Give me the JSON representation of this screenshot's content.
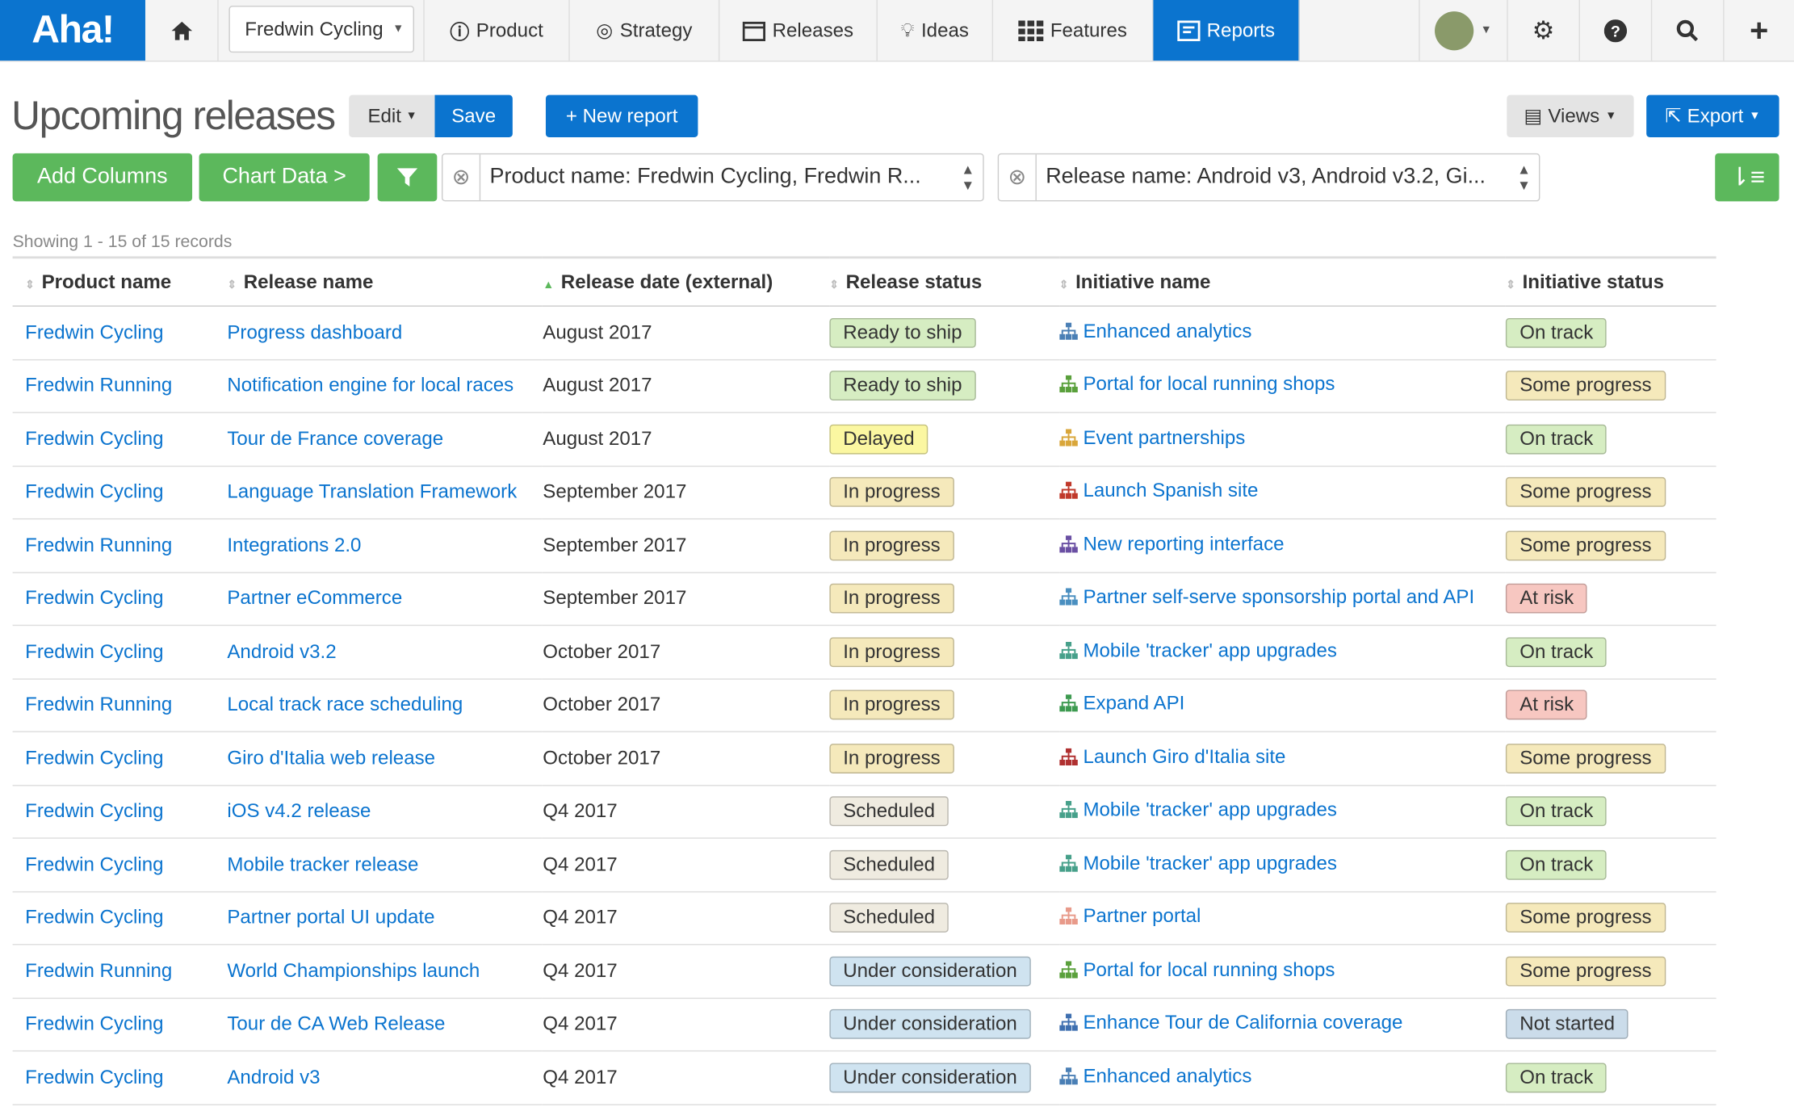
{
  "nav": {
    "logo": "Aha!",
    "workspace": "Fredwin Cycling",
    "items": [
      "Product",
      "Strategy",
      "Releases",
      "Ideas",
      "Features",
      "Reports"
    ]
  },
  "header": {
    "title": "Upcoming releases",
    "edit": "Edit",
    "save": "Save",
    "new_report": "+ New report",
    "views": "Views",
    "export": "Export"
  },
  "toolbar": {
    "add_columns": "Add Columns",
    "chart_data": "Chart Data >",
    "filters": [
      "Product name: Fredwin Cycling, Fredwin R...",
      "Release name: Android v3, Android v3.2, Gi..."
    ]
  },
  "showing": "Showing 1 - 15 of 15 records",
  "table": {
    "columns": [
      "Product name",
      "Release name",
      "Release date (external)",
      "Release status",
      "Initiative name",
      "Initiative status"
    ],
    "rows": [
      {
        "product": "Fredwin Cycling",
        "release": "Progress dashboard",
        "date": "August 2017",
        "status": {
          "label": "Ready to ship",
          "color": "#d6edc2"
        },
        "initiative": {
          "label": "Enhanced analytics",
          "color": "#4a7fb5"
        },
        "initiative_status": {
          "label": "On track",
          "color": "#d6edc2"
        }
      },
      {
        "product": "Fredwin Running",
        "release": "Notification engine for local races",
        "date": "August 2017",
        "status": {
          "label": "Ready to ship",
          "color": "#d6edc2"
        },
        "initiative": {
          "label": "Portal for local running shops",
          "color": "#5aa03c"
        },
        "initiative_status": {
          "label": "Some progress",
          "color": "#f5e9bb"
        }
      },
      {
        "product": "Fredwin Cycling",
        "release": "Tour de France coverage",
        "date": "August 2017",
        "status": {
          "label": "Delayed",
          "color": "#fbf7a1"
        },
        "initiative": {
          "label": "Event partnerships",
          "color": "#d9a63a"
        },
        "initiative_status": {
          "label": "On track",
          "color": "#d6edc2"
        }
      },
      {
        "product": "Fredwin Cycling",
        "release": "Language Translation Framework",
        "date": "September 2017",
        "status": {
          "label": "In progress",
          "color": "#f5e9bb"
        },
        "initiative": {
          "label": "Launch Spanish site",
          "color": "#c0392b"
        },
        "initiative_status": {
          "label": "Some progress",
          "color": "#f5e9bb"
        }
      },
      {
        "product": "Fredwin Running",
        "release": "Integrations 2.0",
        "date": "September 2017",
        "status": {
          "label": "In progress",
          "color": "#f5e9bb"
        },
        "initiative": {
          "label": "New reporting interface",
          "color": "#6a4fa3"
        },
        "initiative_status": {
          "label": "Some progress",
          "color": "#f5e9bb"
        }
      },
      {
        "product": "Fredwin Cycling",
        "release": "Partner eCommerce",
        "date": "September 2017",
        "status": {
          "label": "In progress",
          "color": "#f5e9bb"
        },
        "initiative": {
          "label": "Partner self-serve sponsorship portal and API",
          "color": "#4a8fc0"
        },
        "initiative_status": {
          "label": "At risk",
          "color": "#f7c7c1"
        }
      },
      {
        "product": "Fredwin Cycling",
        "release": "Android v3.2",
        "date": "October 2017",
        "status": {
          "label": "In progress",
          "color": "#f5e9bb"
        },
        "initiative": {
          "label": "Mobile 'tracker' app upgrades",
          "color": "#46a08a"
        },
        "initiative_status": {
          "label": "On track",
          "color": "#d6edc2"
        }
      },
      {
        "product": "Fredwin Running",
        "release": "Local track race scheduling",
        "date": "October 2017",
        "status": {
          "label": "In progress",
          "color": "#f5e9bb"
        },
        "initiative": {
          "label": "Expand API",
          "color": "#3d9a50"
        },
        "initiative_status": {
          "label": "At risk",
          "color": "#f7c7c1"
        }
      },
      {
        "product": "Fredwin Cycling",
        "release": "Giro d'Italia web release",
        "date": "October 2017",
        "status": {
          "label": "In progress",
          "color": "#f5e9bb"
        },
        "initiative": {
          "label": "Launch Giro d'Italia site",
          "color": "#b03030"
        },
        "initiative_status": {
          "label": "Some progress",
          "color": "#f5e9bb"
        }
      },
      {
        "product": "Fredwin Cycling",
        "release": "iOS v4.2 release",
        "date": "Q4 2017",
        "status": {
          "label": "Scheduled",
          "color": "#efebe0"
        },
        "initiative": {
          "label": "Mobile 'tracker' app upgrades",
          "color": "#46a08a"
        },
        "initiative_status": {
          "label": "On track",
          "color": "#d6edc2"
        }
      },
      {
        "product": "Fredwin Cycling",
        "release": "Mobile tracker release",
        "date": "Q4 2017",
        "status": {
          "label": "Scheduled",
          "color": "#efebe0"
        },
        "initiative": {
          "label": "Mobile 'tracker' app upgrades",
          "color": "#46a08a"
        },
        "initiative_status": {
          "label": "On track",
          "color": "#d6edc2"
        }
      },
      {
        "product": "Fredwin Cycling",
        "release": "Partner portal UI update",
        "date": "Q4 2017",
        "status": {
          "label": "Scheduled",
          "color": "#efebe0"
        },
        "initiative": {
          "label": "Partner portal",
          "color": "#e89a8a"
        },
        "initiative_status": {
          "label": "Some progress",
          "color": "#f5e9bb"
        }
      },
      {
        "product": "Fredwin Running",
        "release": "World Championships launch",
        "date": "Q4 2017",
        "status": {
          "label": "Under consideration",
          "color": "#cfe3f0"
        },
        "initiative": {
          "label": "Portal for local running shops",
          "color": "#5aa03c"
        },
        "initiative_status": {
          "label": "Some progress",
          "color": "#f5e9bb"
        }
      },
      {
        "product": "Fredwin Cycling",
        "release": "Tour de CA Web Release",
        "date": "Q4 2017",
        "status": {
          "label": "Under consideration",
          "color": "#cfe3f0"
        },
        "initiative": {
          "label": "Enhance Tour de California coverage",
          "color": "#3e6fb0"
        },
        "initiative_status": {
          "label": "Not started",
          "color": "#cbdcea"
        }
      },
      {
        "product": "Fredwin Cycling",
        "release": "Android v3",
        "date": "Q4 2017",
        "status": {
          "label": "Under consideration",
          "color": "#cfe3f0"
        },
        "initiative": {
          "label": "Enhanced analytics",
          "color": "#4a7fb5"
        },
        "initiative_status": {
          "label": "On track",
          "color": "#d6edc2"
        }
      }
    ]
  }
}
